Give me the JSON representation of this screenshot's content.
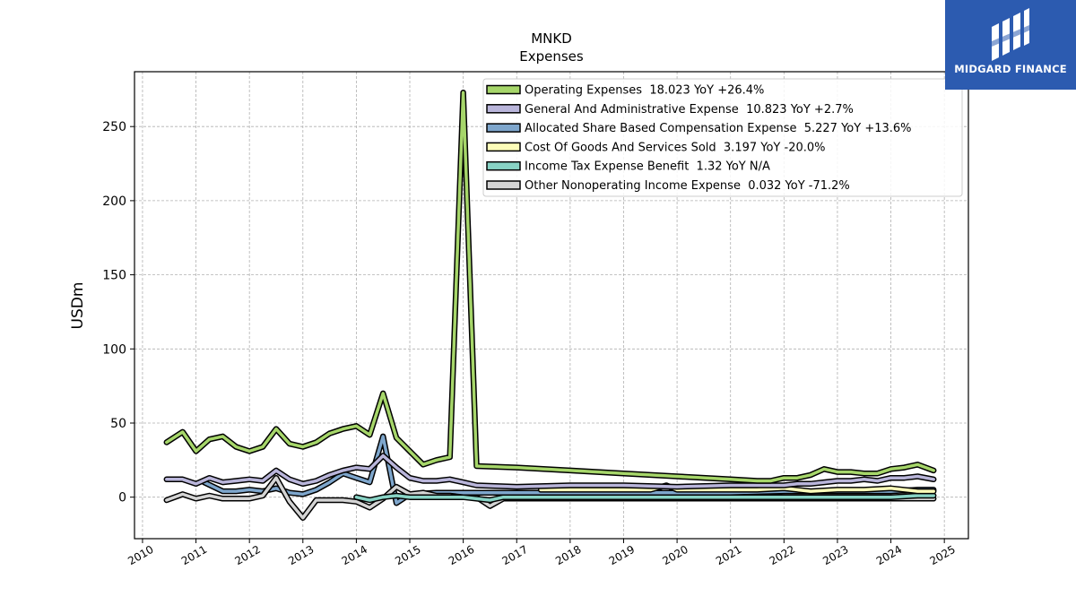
{
  "brand": {
    "name": "MIDGARD FINANCE",
    "background": "#2c5bb0"
  },
  "chart_data": {
    "type": "line",
    "title": "MNKD",
    "subtitle": "Expenses",
    "ylabel": "USDm",
    "xlabel": "",
    "xlim": [
      2009.85,
      2025.45
    ],
    "ylim": [
      -28,
      287
    ],
    "x_ticks": [
      2010,
      2011,
      2012,
      2013,
      2014,
      2015,
      2016,
      2017,
      2018,
      2019,
      2020,
      2021,
      2022,
      2023,
      2024,
      2025
    ],
    "y_ticks": [
      0,
      50,
      100,
      150,
      200,
      250
    ],
    "grid": true,
    "legend_position": "top-right",
    "series": [
      {
        "name": "Operating Expenses",
        "legend": "Operating Expenses  18.023 YoY +26.4%",
        "color": "#a6d66a",
        "x": [
          2010.45,
          2010.75,
          2011.0,
          2011.25,
          2011.5,
          2011.75,
          2012.0,
          2012.25,
          2012.5,
          2012.75,
          2013.0,
          2013.25,
          2013.5,
          2013.75,
          2014.0,
          2014.25,
          2014.5,
          2014.75,
          2015.0,
          2015.25,
          2015.5,
          2015.75,
          2016.0,
          2016.25,
          2017.0,
          2018.0,
          2019.0,
          2020.0,
          2021.0,
          2021.5,
          2021.75,
          2022.0,
          2022.25,
          2022.5,
          2022.75,
          2023.0,
          2023.25,
          2023.5,
          2023.75,
          2024.0,
          2024.25,
          2024.5,
          2024.8
        ],
        "y": [
          37,
          44,
          31,
          39,
          41,
          34,
          31,
          34,
          46,
          36,
          34,
          37,
          43,
          46,
          48,
          42,
          70,
          40,
          31,
          22,
          25,
          27,
          273,
          21,
          20,
          18,
          16,
          14,
          12,
          11,
          11,
          13,
          13,
          15,
          19,
          17,
          17,
          16,
          16,
          19,
          20,
          22,
          18
        ]
      },
      {
        "name": "General And Administrative Expense",
        "legend": "General And Administrative Expense  10.823 YoY +2.7%",
        "color": "#b9b5da",
        "x": [
          2010.45,
          2010.75,
          2011.0,
          2011.25,
          2011.5,
          2011.75,
          2012.0,
          2012.25,
          2012.5,
          2012.75,
          2013.0,
          2013.25,
          2013.5,
          2013.75,
          2014.0,
          2014.25,
          2014.5,
          2014.75,
          2015.0,
          2015.25,
          2015.5,
          2015.75,
          2016.0,
          2016.25,
          2017.0,
          2018.0,
          2019.0,
          2020.0,
          2021.0,
          2022.0,
          2022.25,
          2022.5,
          2022.75,
          2023.0,
          2023.25,
          2023.5,
          2023.75,
          2024.0,
          2024.25,
          2024.5,
          2024.8
        ],
        "y": [
          12,
          12,
          9,
          13,
          10,
          11,
          12,
          11,
          18,
          12,
          9,
          11,
          15,
          18,
          20,
          19,
          28,
          20,
          13,
          11,
          11,
          12,
          10,
          8,
          7,
          8,
          8,
          7,
          8,
          8,
          9,
          9,
          10,
          11,
          11,
          12,
          11,
          13,
          13,
          14,
          12
        ]
      },
      {
        "name": "Allocated Share Based Compensation Expense",
        "legend": "Allocated Share Based Compensation Expense  5.227 YoY +13.6%",
        "color": "#7ea6cc",
        "x": [
          2011.15,
          2011.5,
          2011.75,
          2012.0,
          2012.25,
          2012.5,
          2012.75,
          2013.0,
          2013.25,
          2013.5,
          2013.75,
          2014.0,
          2014.25,
          2014.5,
          2014.75,
          2015.0,
          2015.5,
          2016.0,
          2017.0,
          2018.0,
          2019.0,
          2020.0,
          2021.0,
          2022.0,
          2023.0,
          2024.0,
          2024.5,
          2024.8
        ],
        "y": [
          10,
          4,
          4,
          5,
          4,
          6,
          3,
          2,
          5,
          10,
          16,
          13,
          10,
          41,
          -4,
          2,
          3,
          3,
          3,
          3,
          3,
          3,
          3,
          4,
          4,
          4,
          5,
          5
        ]
      },
      {
        "name": "Cost Of Goods And Services Sold",
        "legend": "Cost Of Goods And Services Sold  3.197 YoY -20.0%",
        "color": "#fdfdb9",
        "x": [
          2017.45,
          2018.0,
          2018.5,
          2019.0,
          2019.5,
          2019.8,
          2020.0,
          2020.5,
          2021.0,
          2021.5,
          2022.0,
          2022.5,
          2023.0,
          2023.5,
          2024.0,
          2024.5,
          2024.8
        ],
        "y": [
          5,
          5,
          5,
          5,
          5,
          8,
          5,
          5,
          5,
          5,
          6,
          4,
          5,
          5,
          6,
          4,
          4
        ]
      },
      {
        "name": "Income Tax Expense Benefit",
        "legend": "Income Tax Expense Benefit  1.32 YoY N/A",
        "color": "#88d3c5",
        "x": [
          2014.0,
          2014.25,
          2014.5,
          2014.75,
          2015.0,
          2015.5,
          2016.0,
          2016.5,
          2016.75,
          2017.0,
          2018.0,
          2019.0,
          2020.0,
          2021.0,
          2022.0,
          2023.0,
          2024.0,
          2024.5,
          2024.8
        ],
        "y": [
          0,
          -2,
          0,
          1,
          0,
          0,
          0,
          -2,
          0,
          0,
          0,
          0,
          0,
          0,
          0,
          0,
          0,
          1,
          1
        ]
      },
      {
        "name": "Other Nonoperating Income Expense",
        "legend": "Other Nonoperating Income Expense  0.032 YoY -71.2%",
        "color": "#d4d4d4",
        "x": [
          2010.45,
          2010.75,
          2011.0,
          2011.25,
          2011.5,
          2011.75,
          2012.0,
          2012.25,
          2012.5,
          2012.75,
          2013.0,
          2013.25,
          2013.5,
          2013.75,
          2014.0,
          2014.25,
          2014.5,
          2014.75,
          2015.0,
          2015.25,
          2015.5,
          2015.75,
          2016.0,
          2016.25,
          2016.5,
          2016.75,
          2017.0,
          2018.0,
          2019.0,
          2020.0,
          2021.0,
          2022.0,
          2023.0,
          2023.5,
          2024.0,
          2024.5,
          2024.8
        ],
        "y": [
          -2,
          2,
          -1,
          1,
          -1,
          -1,
          -1,
          1,
          13,
          -3,
          -14,
          -2,
          -2,
          -2,
          -3,
          -7,
          -1,
          7,
          2,
          3,
          1,
          1,
          0,
          0,
          -6,
          -1,
          -1,
          -1,
          -1,
          -1,
          -1,
          -1,
          -1,
          -1,
          -1,
          -1,
          -1
        ]
      }
    ],
    "draw_order": [
      2,
      5,
      4,
      3,
      1,
      0
    ]
  }
}
